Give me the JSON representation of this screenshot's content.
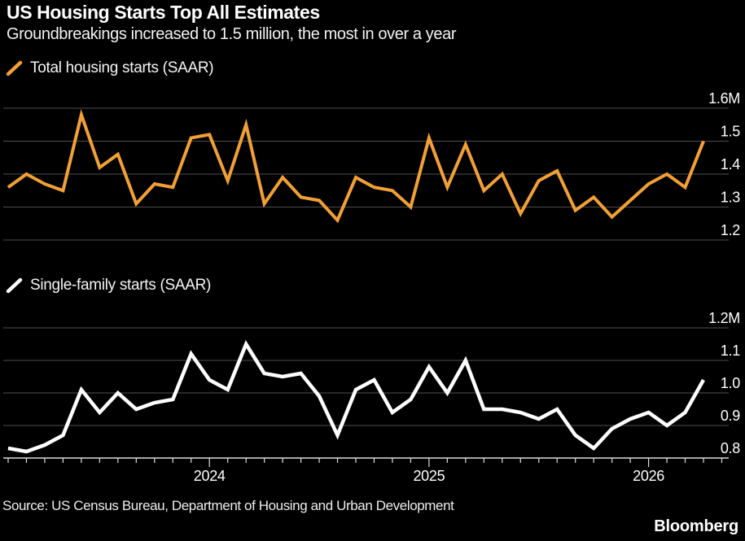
{
  "header": {
    "title": "US Housing Starts Top All Estimates",
    "subtitle": "Groundbreakings increased to 1.5 million, the most in over a year"
  },
  "footer": {
    "source": "Source: US Census Bureau, Department of Housing and Urban Development",
    "brand": "Bloomberg"
  },
  "colors": {
    "background": "#000000",
    "total_line": "#f2a035",
    "single_family_line": "#ffffff",
    "gridline": "#4f4f4f",
    "axis_line": "#dcdcdc",
    "tick": "#dcdcdc",
    "label_text": "#ffffff"
  },
  "x_axis": {
    "tick_labels": [
      {
        "label": "2024",
        "index": 11
      },
      {
        "label": "2025",
        "index": 23
      },
      {
        "label": "2026",
        "index": 35
      }
    ],
    "minor_tick_count": 40,
    "grid": "horizontal-only"
  },
  "chart_data": [
    {
      "type": "line",
      "name": "total-housing-starts",
      "legend": "Total housing starts (SAAR)",
      "color_key": "total_line",
      "unit": "millions of units, SAAR",
      "ylim": [
        1.2,
        1.65
      ],
      "y_ticks": [
        {
          "value": 1.6,
          "label": "1.6M"
        },
        {
          "value": 1.5,
          "label": "1.5"
        },
        {
          "value": 1.4,
          "label": "1.4"
        },
        {
          "value": 1.3,
          "label": "1.3"
        },
        {
          "value": 1.2,
          "label": "1.2"
        }
      ],
      "values": [
        1.36,
        1.4,
        1.37,
        1.35,
        1.58,
        1.42,
        1.46,
        1.31,
        1.37,
        1.36,
        1.51,
        1.52,
        1.38,
        1.55,
        1.31,
        1.39,
        1.33,
        1.32,
        1.26,
        1.39,
        1.36,
        1.35,
        1.3,
        1.51,
        1.36,
        1.49,
        1.35,
        1.4,
        1.28,
        1.38,
        1.41,
        1.29,
        1.33,
        1.27,
        1.32,
        1.37,
        1.4,
        1.36,
        1.5
      ]
    },
    {
      "type": "line",
      "name": "single-family-starts",
      "legend": "Single-family starts (SAAR)",
      "color_key": "single_family_line",
      "unit": "millions of units, SAAR",
      "ylim": [
        0.8,
        1.25
      ],
      "y_ticks": [
        {
          "value": 1.2,
          "label": "1.2M"
        },
        {
          "value": 1.1,
          "label": "1.1"
        },
        {
          "value": 1.0,
          "label": "1.0"
        },
        {
          "value": 0.9,
          "label": "0.9"
        },
        {
          "value": 0.8,
          "label": "0.8"
        }
      ],
      "values": [
        0.83,
        0.82,
        0.84,
        0.87,
        1.01,
        0.94,
        1.0,
        0.95,
        0.97,
        0.98,
        1.12,
        1.04,
        1.01,
        1.15,
        1.06,
        1.05,
        1.06,
        0.99,
        0.87,
        1.01,
        1.04,
        0.94,
        0.98,
        1.08,
        1.0,
        1.1,
        0.95,
        0.95,
        0.94,
        0.92,
        0.95,
        0.87,
        0.83,
        0.89,
        0.92,
        0.94,
        0.9,
        0.94,
        1.04
      ]
    }
  ]
}
